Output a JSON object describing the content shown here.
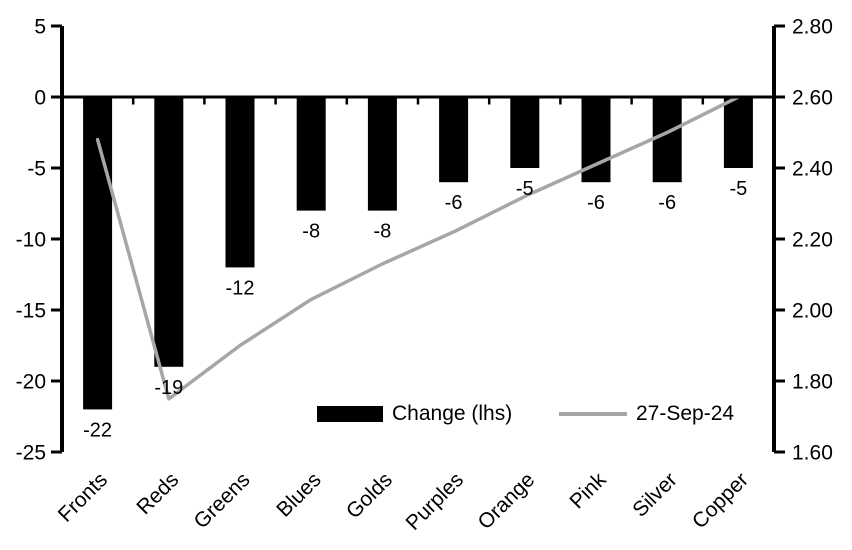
{
  "chart_data": {
    "type": "bar",
    "title": "",
    "categories": [
      "Fronts",
      "Reds",
      "Greens",
      "Blues",
      "Golds",
      "Purples",
      "Orange",
      "Pink",
      "Silver",
      "Copper"
    ],
    "series": [
      {
        "name": "Change (lhs)",
        "type": "bar",
        "axis": "left",
        "color": "#000000",
        "values": [
          -22,
          -19,
          -12,
          -8,
          -8,
          -6,
          -5,
          -6,
          -6,
          -5
        ]
      },
      {
        "name": "27-Sep-24",
        "type": "line",
        "axis": "right",
        "color": "#a6a6a6",
        "values": [
          2.48,
          1.75,
          1.9,
          2.03,
          2.13,
          2.22,
          2.32,
          2.41,
          2.5,
          2.6
        ]
      }
    ],
    "bar_data_labels": [
      "-22",
      "-19",
      "-12",
      "-8",
      "-8",
      "-6",
      "-5",
      "-6",
      "-6",
      "-5"
    ],
    "left_axis": {
      "min": -25,
      "max": 5,
      "step": 5,
      "tick_labels": [
        "5",
        "0",
        "-5",
        "-10",
        "-15",
        "-20",
        "-25"
      ]
    },
    "right_axis": {
      "min": 1.6,
      "max": 2.8,
      "step": 0.2,
      "tick_labels": [
        "2.80",
        "2.60",
        "2.40",
        "2.20",
        "2.00",
        "1.80",
        "1.60"
      ]
    },
    "grid": false,
    "legend_position": "bottom-center-inside",
    "legend": [
      {
        "label": "Change (lhs)",
        "swatch": "bar",
        "color": "#000000"
      },
      {
        "label": "27-Sep-24",
        "swatch": "line",
        "color": "#a6a6a6"
      }
    ],
    "axis_color": "#000000",
    "background_color": "#ffffff"
  }
}
